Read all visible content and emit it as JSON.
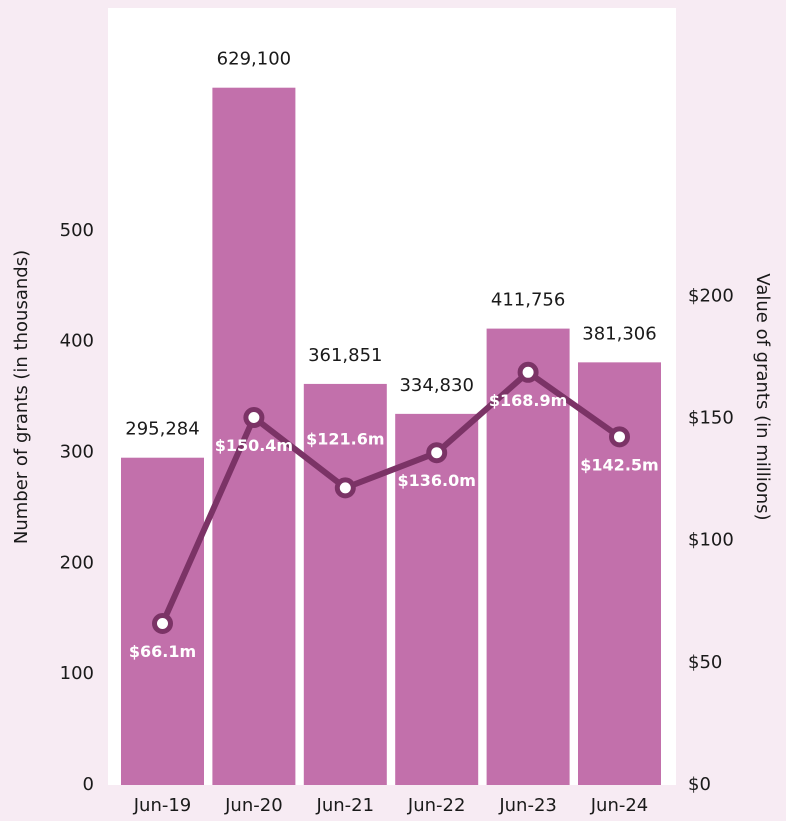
{
  "chart_data": {
    "type": "bar-line",
    "y_label": "Number of grants (in thousands)",
    "y2_label": "Value of grants (in millions)",
    "categories": [
      "Jun-19",
      "Jun-20",
      "Jun-21",
      "Jun-22",
      "Jun-23",
      "Jun-24"
    ],
    "series": [
      {
        "name": "Number of grants",
        "type": "bar",
        "color": "#c270ab",
        "values": [
          295.284,
          629.1,
          361.851,
          334.83,
          411.756,
          381.306
        ],
        "value_labels": [
          "295,284",
          "629,100",
          "361,851",
          "334,830",
          "411,756",
          "381,306"
        ]
      },
      {
        "name": "Value of grants",
        "type": "line",
        "axis": "y2",
        "color": "#7b3366",
        "values": [
          66.1,
          150.4,
          121.6,
          136.0,
          168.9,
          142.5
        ],
        "value_labels": [
          "$66.1m",
          "$150.4m",
          "$121.6m",
          "$136.0m",
          "$168.9m",
          "$142.5m"
        ]
      }
    ],
    "ylim": [
      0,
      701
    ],
    "yticks": [
      0,
      100,
      200,
      300,
      400,
      500
    ],
    "y2lim": [
      0,
      318
    ],
    "y2ticks": [
      {
        "value": 0,
        "label": "$0"
      },
      {
        "value": 50,
        "label": "$50"
      },
      {
        "value": 100,
        "label": "$100"
      },
      {
        "value": 150,
        "label": "$150"
      },
      {
        "value": 200,
        "label": "$200"
      }
    ]
  }
}
